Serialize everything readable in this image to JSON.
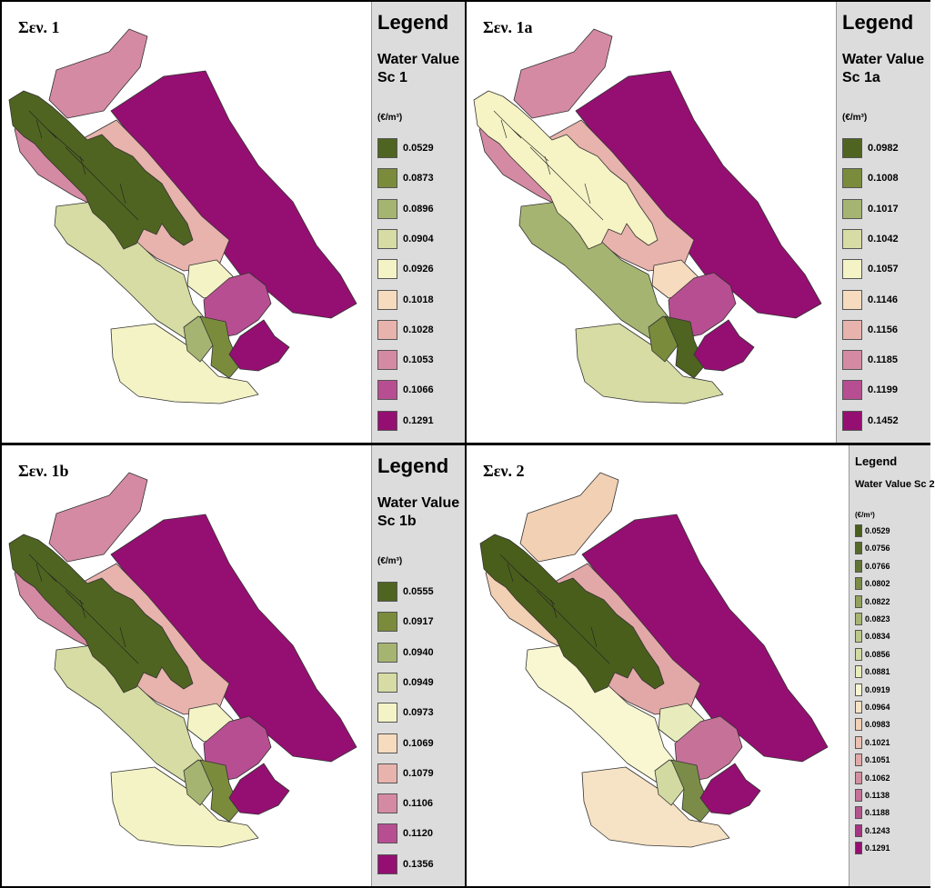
{
  "panels": [
    {
      "title": "Σεν. 1",
      "legend_title": "Legend",
      "legend_subtitle": "Water Value Sc 1",
      "unit": "(€/m³)",
      "items": [
        {
          "label": "0.0529",
          "color": "#4f6420"
        },
        {
          "label": "0.0873",
          "color": "#7a8c3c"
        },
        {
          "label": "0.0896",
          "color": "#a6b472"
        },
        {
          "label": "0.0904",
          "color": "#d6dca3"
        },
        {
          "label": "0.0926",
          "color": "#f4f3c6"
        },
        {
          "label": "0.1018",
          "color": "#f6dbbf"
        },
        {
          "label": "0.1028",
          "color": "#e8b3ad"
        },
        {
          "label": "0.1053",
          "color": "#d58aa3"
        },
        {
          "label": "0.1066",
          "color": "#b84e92"
        },
        {
          "label": "0.1291",
          "color": "#950f72"
        }
      ],
      "regions": {
        "north": "#d58aa3",
        "northeast": "#950f72",
        "west": "#d58aa3",
        "core": "#4f6420",
        "band": "#e8b3ad",
        "southwest": "#d6dca3",
        "south": "#f4f3c6",
        "small": "#f4f3c6",
        "east": "#b84e92",
        "mid1": "#a6b472",
        "mid2": "#7a8c3c",
        "southeast": "#950f72"
      }
    },
    {
      "title": "Σεν. 1a",
      "legend_title": "Legend",
      "legend_subtitle": "Water Value Sc 1a",
      "unit": "(€/m³)",
      "items": [
        {
          "label": "0.0982",
          "color": "#4f6420"
        },
        {
          "label": "0.1008",
          "color": "#7a8c3c"
        },
        {
          "label": "0.1017",
          "color": "#a6b472"
        },
        {
          "label": "0.1042",
          "color": "#d6dca3"
        },
        {
          "label": "0.1057",
          "color": "#f4f3c6"
        },
        {
          "label": "0.1146",
          "color": "#f6dbbf"
        },
        {
          "label": "0.1156",
          "color": "#e8b3ad"
        },
        {
          "label": "0.1185",
          "color": "#d58aa3"
        },
        {
          "label": "0.1199",
          "color": "#b84e92"
        },
        {
          "label": "0.1452",
          "color": "#950f72"
        }
      ],
      "regions": {
        "north": "#d58aa3",
        "northeast": "#950f72",
        "west": "#d58aa3",
        "core": "#f6f3c4",
        "band": "#e8b3ad",
        "southwest": "#a6b472",
        "south": "#d6dca3",
        "small": "#f6dbbf",
        "east": "#b84e92",
        "mid1": "#7a8c3c",
        "mid2": "#4f6420",
        "southeast": "#950f72"
      }
    },
    {
      "title": "Σεν. 1b",
      "legend_title": "Legend",
      "legend_subtitle": "Water Value Sc 1b",
      "unit": "(€/m³)",
      "items": [
        {
          "label": "0.0555",
          "color": "#4f6420"
        },
        {
          "label": "0.0917",
          "color": "#7a8c3c"
        },
        {
          "label": "0.0940",
          "color": "#a6b472"
        },
        {
          "label": "0.0949",
          "color": "#d6dca3"
        },
        {
          "label": "0.0973",
          "color": "#f4f3c6"
        },
        {
          "label": "0.1069",
          "color": "#f6dbbf"
        },
        {
          "label": "0.1079",
          "color": "#e8b3ad"
        },
        {
          "label": "0.1106",
          "color": "#d58aa3"
        },
        {
          "label": "0.1120",
          "color": "#b84e92"
        },
        {
          "label": "0.1356",
          "color": "#950f72"
        }
      ],
      "regions": {
        "north": "#d58aa3",
        "northeast": "#950f72",
        "west": "#d58aa3",
        "core": "#4f6420",
        "band": "#e8b3ad",
        "southwest": "#d6dca3",
        "south": "#f4f3c6",
        "small": "#f4f3c6",
        "east": "#b84e92",
        "mid1": "#a6b472",
        "mid2": "#7a8c3c",
        "southeast": "#950f72"
      }
    },
    {
      "title": "Σεν. 2",
      "legend_title": "Legend",
      "legend_subtitle": "Water Value Sc 2",
      "unit": "(€/m³)",
      "items": [
        {
          "label": "0.0529",
          "color": "#4a5e1c"
        },
        {
          "label": "0.0756",
          "color": "#56692a"
        },
        {
          "label": "0.0766",
          "color": "#627434"
        },
        {
          "label": "0.0802",
          "color": "#7a8c48"
        },
        {
          "label": "0.0822",
          "color": "#92a25e"
        },
        {
          "label": "0.0823",
          "color": "#a6b472"
        },
        {
          "label": "0.0834",
          "color": "#bcc78a"
        },
        {
          "label": "0.0856",
          "color": "#d2daa2"
        },
        {
          "label": "0.0881",
          "color": "#e8ecbc"
        },
        {
          "label": "0.0919",
          "color": "#f8f7d2"
        },
        {
          "label": "0.0964",
          "color": "#f6e2c4"
        },
        {
          "label": "0.0983",
          "color": "#f2d0b4"
        },
        {
          "label": "0.1021",
          "color": "#ecc0b0"
        },
        {
          "label": "0.1051",
          "color": "#e2a8a8"
        },
        {
          "label": "0.1062",
          "color": "#d48ea0"
        },
        {
          "label": "0.1138",
          "color": "#c67298"
        },
        {
          "label": "0.1188",
          "color": "#b4558e"
        },
        {
          "label": "0.1243",
          "color": "#a43682"
        },
        {
          "label": "0.1291",
          "color": "#950f72"
        }
      ],
      "regions": {
        "north": "#f2d0b4",
        "northeast": "#950f72",
        "west": "#f2d0b4",
        "core": "#4a5e1c",
        "band": "#e2a8a8",
        "southwest": "#f8f7d2",
        "south": "#f6e2c4",
        "small": "#e8ecbc",
        "east": "#c67298",
        "mid1": "#d2daa2",
        "mid2": "#7a8c48",
        "southeast": "#950f72"
      }
    }
  ]
}
